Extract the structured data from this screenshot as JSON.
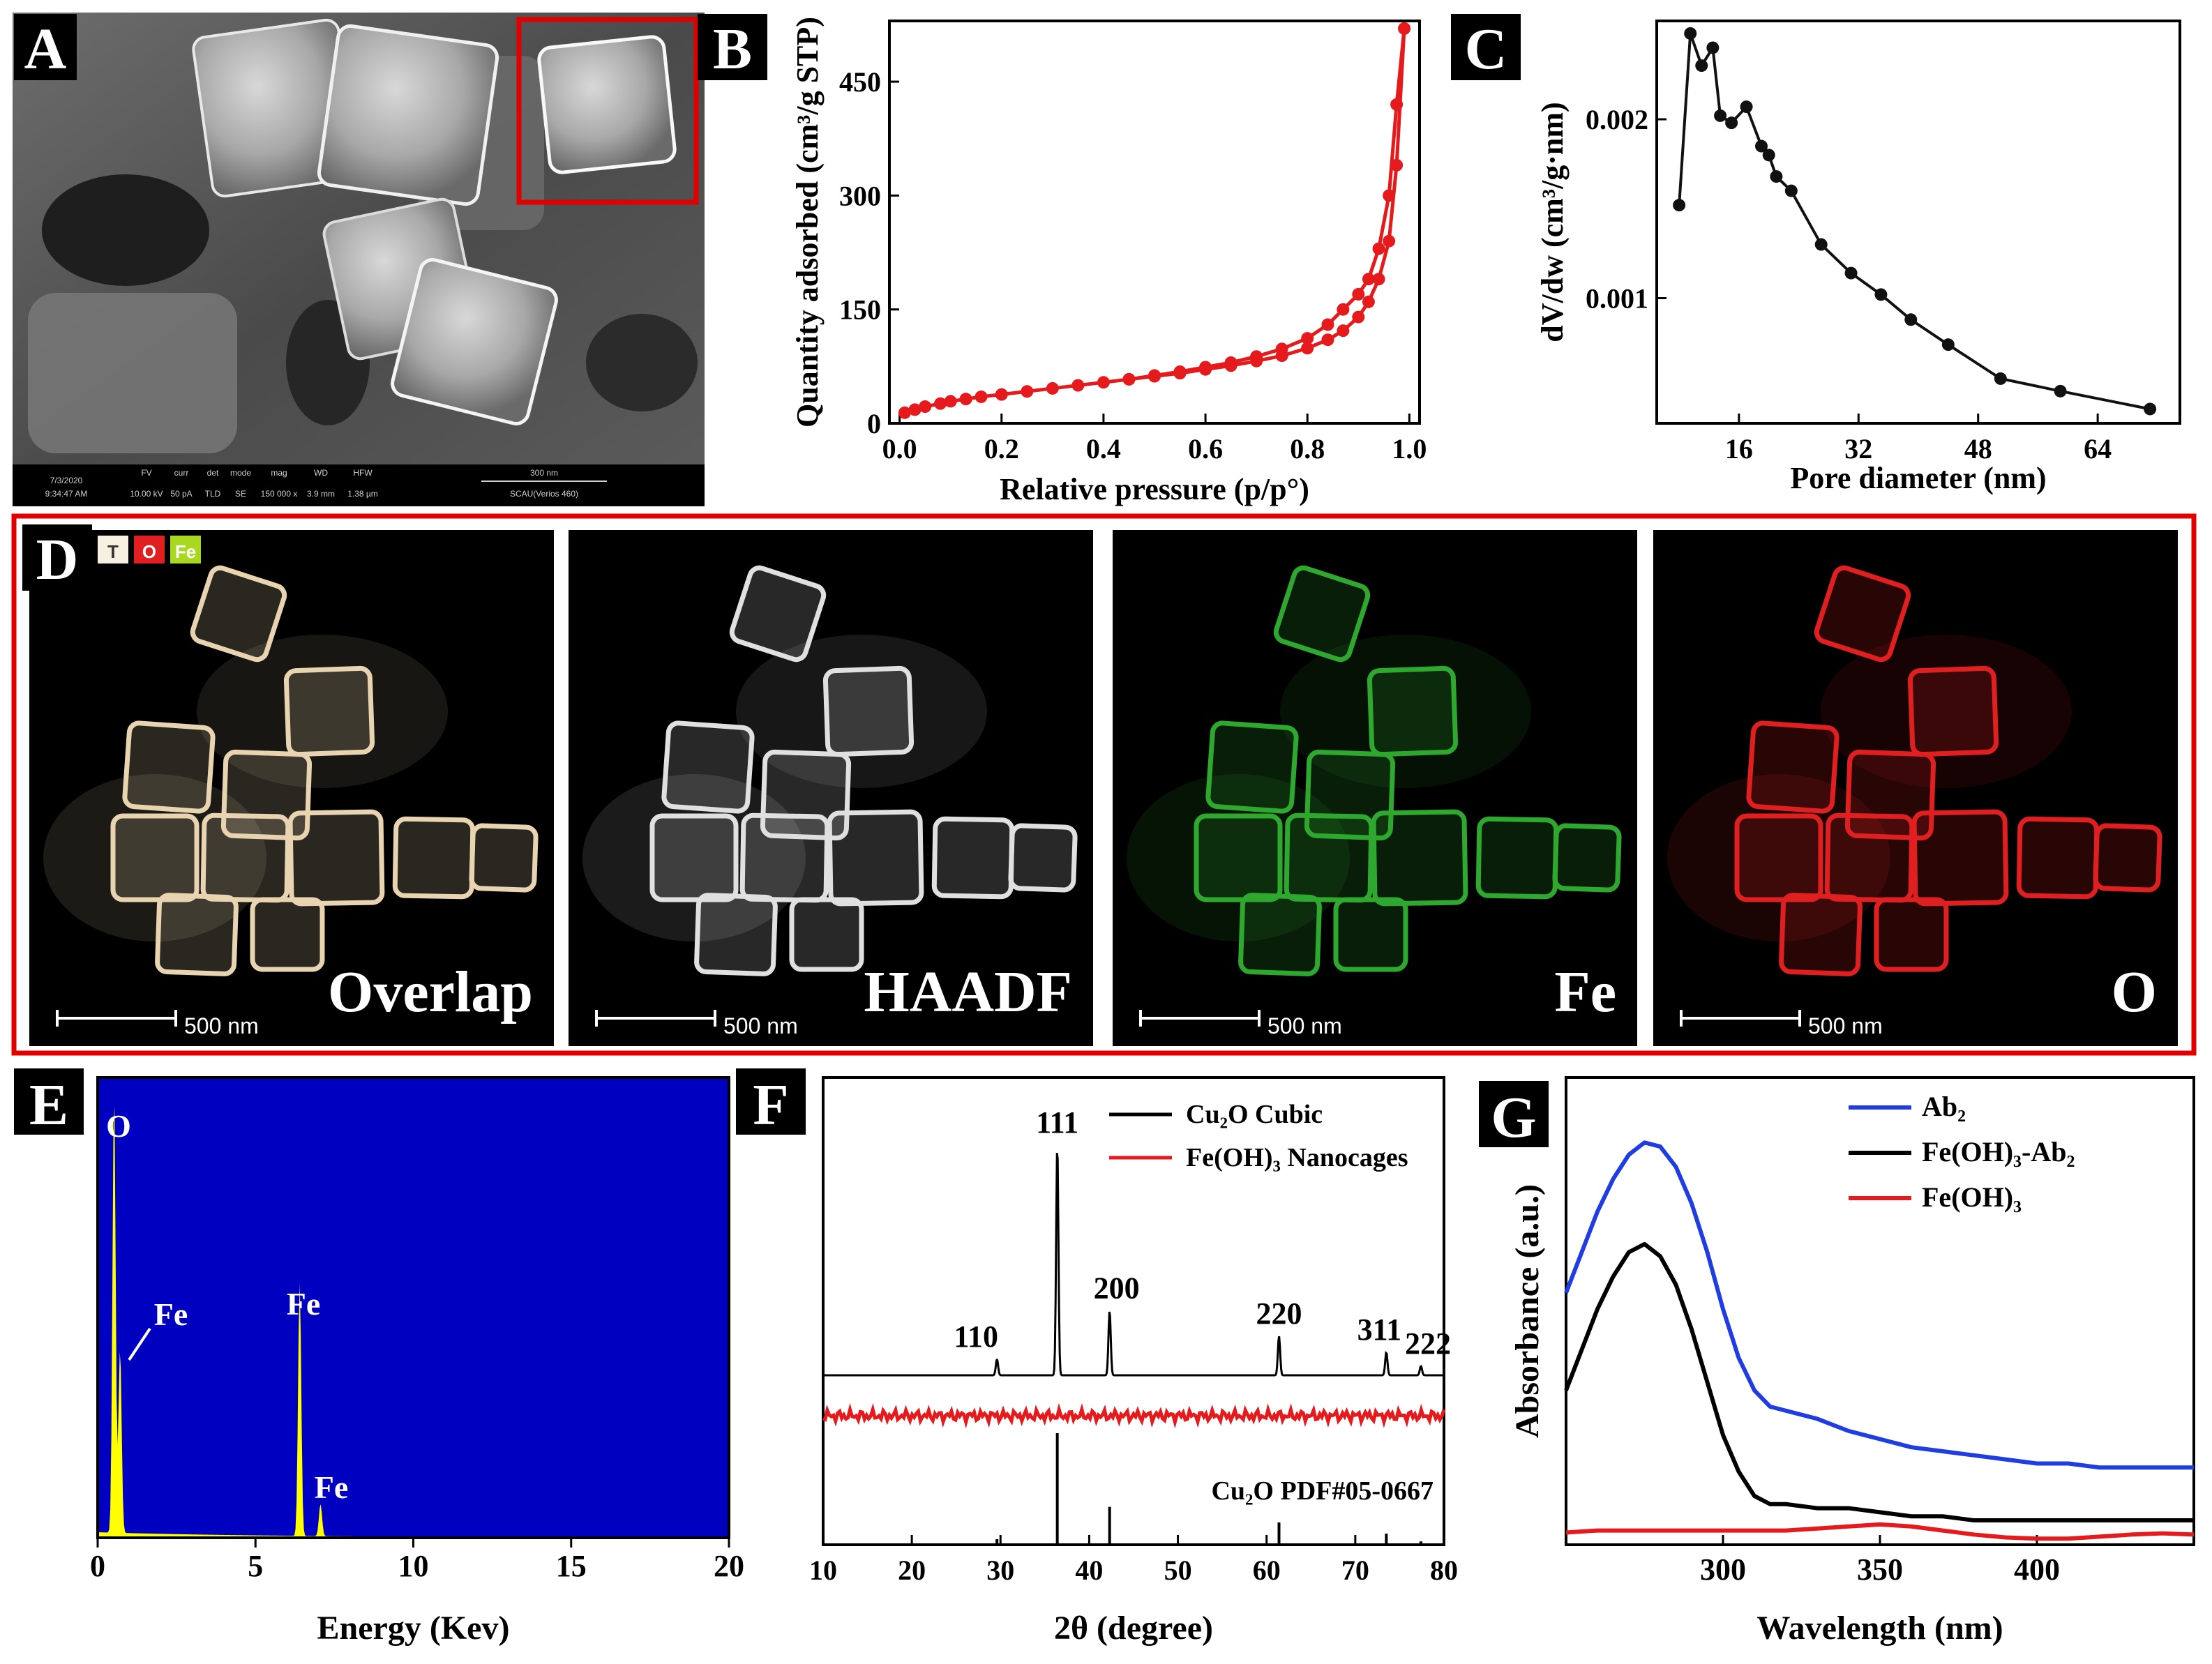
{
  "panels": {
    "A": {
      "letter": "A"
    },
    "B": {
      "letter": "B"
    },
    "C": {
      "letter": "C"
    },
    "D": {
      "letter": "D"
    },
    "E": {
      "letter": "E"
    },
    "F": {
      "letter": "F"
    },
    "G": {
      "letter": "G"
    }
  },
  "sem": {
    "info_headers": [
      "FV",
      "curr",
      "det",
      "mode",
      "mag",
      "WD",
      "HFW",
      "300 nm"
    ],
    "info_values": [
      "7/3/2020",
      "9:34:47 AM",
      "10.00 kV",
      "50 pA",
      "TLD",
      "SE",
      "150 000 x",
      "3.9 mm",
      "1.38 µm",
      "SCAU(Verios 460)"
    ]
  },
  "mapping": {
    "legend_chips": [
      "T",
      "O",
      "Fe"
    ],
    "panels": [
      {
        "label": "Overlap",
        "scale": "500 nm",
        "color": "#e8d4b0"
      },
      {
        "label": "HAADF",
        "scale": "500 nm",
        "color": "#e0e0e0"
      },
      {
        "label": "Fe",
        "scale": "500 nm",
        "color": "#2ea82e"
      },
      {
        "label": "O",
        "scale": "500 nm",
        "color": "#e02020"
      }
    ]
  },
  "chart_data": [
    {
      "panel": "B",
      "type": "line",
      "xlabel": "Relative pressure (p/p°)",
      "ylabel": "Quantity adsorbed (cm³/g STP)",
      "xlim": [
        -0.02,
        1.02
      ],
      "ylim": [
        0,
        530
      ],
      "xticks": [
        "0.0",
        "0.2",
        "0.4",
        "0.6",
        "0.8",
        "1.0"
      ],
      "yticks": [
        "0",
        "150",
        "300",
        "450"
      ],
      "color": "#e41a1c",
      "series": [
        {
          "x": [
            0.01,
            0.03,
            0.05,
            0.08,
            0.1,
            0.13,
            0.16,
            0.2,
            0.25,
            0.3,
            0.35,
            0.4,
            0.45,
            0.5,
            0.55,
            0.6,
            0.65,
            0.7,
            0.75,
            0.8,
            0.84,
            0.87,
            0.9,
            0.92,
            0.94,
            0.96,
            0.975,
            0.99
          ],
          "y": [
            14,
            18,
            22,
            26,
            29,
            32,
            35,
            38,
            42,
            46,
            50,
            54,
            58,
            62,
            66,
            71,
            76,
            82,
            89,
            99,
            110,
            122,
            140,
            160,
            190,
            240,
            340,
            520
          ]
        },
        {
          "x": [
            0.99,
            0.975,
            0.96,
            0.94,
            0.92,
            0.9,
            0.87,
            0.84,
            0.8,
            0.75,
            0.7,
            0.65,
            0.6,
            0.55,
            0.5,
            0.45
          ],
          "y": [
            520,
            420,
            300,
            230,
            190,
            170,
            150,
            130,
            112,
            98,
            88,
            80,
            74,
            68,
            63,
            58
          ]
        }
      ]
    },
    {
      "panel": "C",
      "type": "line",
      "xlabel": "Pore diameter (nm)",
      "ylabel": "dV/dw (cm³/g·nm)",
      "xlim": [
        5,
        75
      ],
      "ylim": [
        0.0003,
        0.00255
      ],
      "xticks": [
        "16",
        "32",
        "48",
        "64"
      ],
      "yticks": [
        "0.001",
        "0.002"
      ],
      "color": "#111111",
      "x": [
        8,
        9.5,
        11,
        12.5,
        13.5,
        15,
        17,
        19,
        20,
        21,
        23,
        27,
        31,
        35,
        39,
        44,
        51,
        59,
        71
      ],
      "y": [
        0.00152,
        0.00248,
        0.0023,
        0.0024,
        0.00202,
        0.00198,
        0.00207,
        0.00185,
        0.0018,
        0.00168,
        0.0016,
        0.0013,
        0.00114,
        0.00102,
        0.00088,
        0.00074,
        0.00055,
        0.00048,
        0.00038
      ]
    },
    {
      "panel": "E",
      "type": "line",
      "xlabel": "Energy (Kev)",
      "xlim": [
        0,
        20
      ],
      "ylim": [
        0,
        1.0
      ],
      "xticks": [
        "0",
        "5",
        "10",
        "15",
        "20"
      ],
      "background": "#0000c0",
      "color": "#ffff00",
      "peaks": [
        {
          "label": "O",
          "x": 0.52,
          "y": 0.96
        },
        {
          "label": "Fe",
          "x": 0.71,
          "y": 0.4
        },
        {
          "label": "Fe",
          "x": 6.4,
          "y": 0.55
        },
        {
          "label": "Fe",
          "x": 7.06,
          "y": 0.07
        }
      ]
    },
    {
      "panel": "F",
      "type": "line",
      "xlabel": "2θ (degree)",
      "xlim": [
        10,
        80
      ],
      "xticks": [
        "10",
        "20",
        "30",
        "40",
        "50",
        "60",
        "70",
        "80"
      ],
      "legend": [
        {
          "name": "Cu₂O Cubic",
          "color": "#000000"
        },
        {
          "name": "Fe(OH)₃ Nanocages",
          "color": "#e41a1c"
        }
      ],
      "peaks": [
        {
          "label": "110",
          "x": 29.6,
          "h": 0.07
        },
        {
          "label": "111",
          "x": 36.4,
          "h": 1.0
        },
        {
          "label": "200",
          "x": 42.3,
          "h": 0.28
        },
        {
          "label": "220",
          "x": 61.4,
          "h": 0.17
        },
        {
          "label": "311",
          "x": 73.5,
          "h": 0.1
        },
        {
          "label": "222",
          "x": 77.4,
          "h": 0.04
        }
      ],
      "reference_label": "Cu₂O PDF#05-0667",
      "reference_lines": [
        {
          "x": 29.6,
          "h": 0.05
        },
        {
          "x": 36.4,
          "h": 1.0
        },
        {
          "x": 42.3,
          "h": 0.34
        },
        {
          "x": 61.4,
          "h": 0.2
        },
        {
          "x": 73.5,
          "h": 0.1
        },
        {
          "x": 77.4,
          "h": 0.03
        }
      ]
    },
    {
      "panel": "G",
      "type": "line",
      "xlabel": "Wavelength (nm)",
      "ylabel": "Absorbance (a.u.)",
      "xlim": [
        250,
        450
      ],
      "xticks": [
        "300",
        "350",
        "400"
      ],
      "series": [
        {
          "name": "Ab₂",
          "color": "#1f3de0",
          "x": [
            250,
            255,
            260,
            265,
            270,
            275,
            280,
            285,
            290,
            295,
            300,
            305,
            310,
            315,
            320,
            330,
            340,
            350,
            360,
            370,
            380,
            390,
            400,
            410,
            420,
            430,
            440,
            450
          ],
          "y": [
            0.62,
            0.72,
            0.82,
            0.9,
            0.96,
            0.99,
            0.98,
            0.93,
            0.84,
            0.72,
            0.58,
            0.46,
            0.38,
            0.34,
            0.33,
            0.31,
            0.28,
            0.26,
            0.24,
            0.23,
            0.22,
            0.21,
            0.2,
            0.2,
            0.19,
            0.19,
            0.19,
            0.19
          ]
        },
        {
          "name": "Fe(OH)₃-Ab₂",
          "color": "#000000",
          "x": [
            250,
            255,
            260,
            265,
            270,
            275,
            280,
            285,
            290,
            295,
            300,
            305,
            310,
            315,
            320,
            330,
            340,
            350,
            360,
            370,
            380,
            390,
            400,
            410,
            420,
            430,
            440,
            450
          ],
          "y": [
            0.38,
            0.48,
            0.58,
            0.66,
            0.72,
            0.74,
            0.71,
            0.64,
            0.53,
            0.4,
            0.27,
            0.18,
            0.12,
            0.1,
            0.1,
            0.09,
            0.09,
            0.08,
            0.07,
            0.07,
            0.06,
            0.06,
            0.06,
            0.06,
            0.06,
            0.06,
            0.06,
            0.06
          ]
        },
        {
          "name": "Fe(OH)₃",
          "color": "#e41a1c",
          "x": [
            250,
            260,
            270,
            280,
            290,
            300,
            310,
            320,
            330,
            340,
            350,
            360,
            370,
            380,
            390,
            400,
            410,
            420,
            430,
            440,
            450
          ],
          "y": [
            0.03,
            0.035,
            0.035,
            0.035,
            0.035,
            0.035,
            0.035,
            0.035,
            0.04,
            0.045,
            0.05,
            0.045,
            0.035,
            0.025,
            0.018,
            0.015,
            0.015,
            0.02,
            0.025,
            0.028,
            0.025
          ]
        }
      ]
    }
  ]
}
